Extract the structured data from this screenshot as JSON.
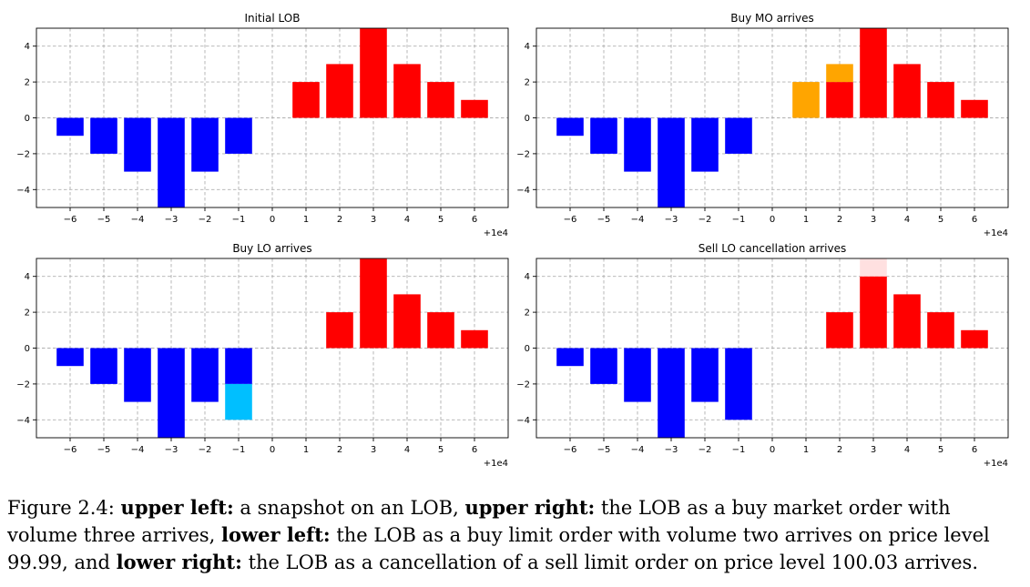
{
  "chart_data": [
    {
      "type": "bar",
      "title": "Initial LOB",
      "offset_label": "+1e4",
      "xticks": [
        "−6",
        "−5",
        "−4",
        "−3",
        "−2",
        "−1",
        "0",
        "1",
        "2",
        "3",
        "4",
        "5",
        "6"
      ],
      "yticks": [
        "−4",
        "−2",
        "0",
        "2",
        "4"
      ],
      "xlim": [
        -7,
        7
      ],
      "ylim": [
        -5,
        5
      ],
      "grid": true,
      "bars": [
        {
          "x": -6,
          "y0": 0,
          "y1": -1,
          "color": "#0000ff"
        },
        {
          "x": -5,
          "y0": 0,
          "y1": -2,
          "color": "#0000ff"
        },
        {
          "x": -4,
          "y0": 0,
          "y1": -3,
          "color": "#0000ff"
        },
        {
          "x": -3,
          "y0": 0,
          "y1": -5,
          "color": "#0000ff"
        },
        {
          "x": -2,
          "y0": 0,
          "y1": -3,
          "color": "#0000ff"
        },
        {
          "x": -1,
          "y0": 0,
          "y1": -2,
          "color": "#0000ff"
        },
        {
          "x": 1,
          "y0": 0,
          "y1": 2,
          "color": "#ff0000"
        },
        {
          "x": 2,
          "y0": 0,
          "y1": 3,
          "color": "#ff0000"
        },
        {
          "x": 3,
          "y0": 0,
          "y1": 5,
          "color": "#ff0000"
        },
        {
          "x": 4,
          "y0": 0,
          "y1": 3,
          "color": "#ff0000"
        },
        {
          "x": 5,
          "y0": 0,
          "y1": 2,
          "color": "#ff0000"
        },
        {
          "x": 6,
          "y0": 0,
          "y1": 1,
          "color": "#ff0000"
        }
      ]
    },
    {
      "type": "bar",
      "title": "Buy MO arrives",
      "offset_label": "+1e4",
      "xticks": [
        "−6",
        "−5",
        "−4",
        "−3",
        "−2",
        "−1",
        "0",
        "1",
        "2",
        "3",
        "4",
        "5",
        "6"
      ],
      "yticks": [
        "−4",
        "−2",
        "0",
        "2",
        "4"
      ],
      "xlim": [
        -7,
        7
      ],
      "ylim": [
        -5,
        5
      ],
      "grid": true,
      "bars": [
        {
          "x": -6,
          "y0": 0,
          "y1": -1,
          "color": "#0000ff"
        },
        {
          "x": -5,
          "y0": 0,
          "y1": -2,
          "color": "#0000ff"
        },
        {
          "x": -4,
          "y0": 0,
          "y1": -3,
          "color": "#0000ff"
        },
        {
          "x": -3,
          "y0": 0,
          "y1": -5,
          "color": "#0000ff"
        },
        {
          "x": -2,
          "y0": 0,
          "y1": -3,
          "color": "#0000ff"
        },
        {
          "x": -1,
          "y0": 0,
          "y1": -2,
          "color": "#0000ff"
        },
        {
          "x": 1,
          "y0": 0,
          "y1": 2,
          "color": "#ffa500"
        },
        {
          "x": 2,
          "y0": 0,
          "y1": 2,
          "color": "#ff0000"
        },
        {
          "x": 2,
          "y0": 2,
          "y1": 3,
          "color": "#ffa500"
        },
        {
          "x": 3,
          "y0": 0,
          "y1": 5,
          "color": "#ff0000"
        },
        {
          "x": 4,
          "y0": 0,
          "y1": 3,
          "color": "#ff0000"
        },
        {
          "x": 5,
          "y0": 0,
          "y1": 2,
          "color": "#ff0000"
        },
        {
          "x": 6,
          "y0": 0,
          "y1": 1,
          "color": "#ff0000"
        }
      ]
    },
    {
      "type": "bar",
      "title": "Buy LO arrives",
      "offset_label": "+1e4",
      "xticks": [
        "−6",
        "−5",
        "−4",
        "−3",
        "−2",
        "−1",
        "0",
        "1",
        "2",
        "3",
        "4",
        "5",
        "6"
      ],
      "yticks": [
        "−4",
        "−2",
        "0",
        "2",
        "4"
      ],
      "xlim": [
        -7,
        7
      ],
      "ylim": [
        -5,
        5
      ],
      "grid": true,
      "bars": [
        {
          "x": -6,
          "y0": 0,
          "y1": -1,
          "color": "#0000ff"
        },
        {
          "x": -5,
          "y0": 0,
          "y1": -2,
          "color": "#0000ff"
        },
        {
          "x": -4,
          "y0": 0,
          "y1": -3,
          "color": "#0000ff"
        },
        {
          "x": -3,
          "y0": 0,
          "y1": -5,
          "color": "#0000ff"
        },
        {
          "x": -2,
          "y0": 0,
          "y1": -3,
          "color": "#0000ff"
        },
        {
          "x": -1,
          "y0": 0,
          "y1": -2,
          "color": "#0000ff"
        },
        {
          "x": -1,
          "y0": -2,
          "y1": -4,
          "color": "#00bfff"
        },
        {
          "x": 2,
          "y0": 0,
          "y1": 2,
          "color": "#ff0000"
        },
        {
          "x": 3,
          "y0": 0,
          "y1": 5,
          "color": "#ff0000"
        },
        {
          "x": 4,
          "y0": 0,
          "y1": 3,
          "color": "#ff0000"
        },
        {
          "x": 5,
          "y0": 0,
          "y1": 2,
          "color": "#ff0000"
        },
        {
          "x": 6,
          "y0": 0,
          "y1": 1,
          "color": "#ff0000"
        }
      ]
    },
    {
      "type": "bar",
      "title": "Sell LO cancellation arrives",
      "offset_label": "+1e4",
      "xticks": [
        "−6",
        "−5",
        "−4",
        "−3",
        "−2",
        "−1",
        "0",
        "1",
        "2",
        "3",
        "4",
        "5",
        "6"
      ],
      "yticks": [
        "−4",
        "−2",
        "0",
        "2",
        "4"
      ],
      "xlim": [
        -7,
        7
      ],
      "ylim": [
        -5,
        5
      ],
      "grid": true,
      "bars": [
        {
          "x": -6,
          "y0": 0,
          "y1": -1,
          "color": "#0000ff"
        },
        {
          "x": -5,
          "y0": 0,
          "y1": -2,
          "color": "#0000ff"
        },
        {
          "x": -4,
          "y0": 0,
          "y1": -3,
          "color": "#0000ff"
        },
        {
          "x": -3,
          "y0": 0,
          "y1": -5,
          "color": "#0000ff"
        },
        {
          "x": -2,
          "y0": 0,
          "y1": -3,
          "color": "#0000ff"
        },
        {
          "x": -1,
          "y0": 0,
          "y1": -4,
          "color": "#0000ff"
        },
        {
          "x": 2,
          "y0": 0,
          "y1": 2,
          "color": "#ff0000"
        },
        {
          "x": 3,
          "y0": 0,
          "y1": 4,
          "color": "#ff0000"
        },
        {
          "x": 3,
          "y0": 4,
          "y1": 5,
          "color": "#ffe0e0"
        },
        {
          "x": 4,
          "y0": 0,
          "y1": 3,
          "color": "#ff0000"
        },
        {
          "x": 5,
          "y0": 0,
          "y1": 2,
          "color": "#ff0000"
        },
        {
          "x": 6,
          "y0": 0,
          "y1": 1,
          "color": "#ff0000"
        }
      ]
    }
  ],
  "caption": {
    "figure_label": "Figure 2.4: ",
    "ul_label": "upper left:",
    "ul_text": " a snapshot on an LOB, ",
    "ur_label": "upper right:",
    "ur_text": " the LOB as a buy market order with volume three arrives, ",
    "ll_label": "lower left:",
    "ll_text": " the LOB as a buy limit order with volume two arrives on price level 99.99, and ",
    "lr_label": "lower right:",
    "lr_text": " the LOB as a cancellation of a sell limit order on price level 100.03 arrives."
  }
}
